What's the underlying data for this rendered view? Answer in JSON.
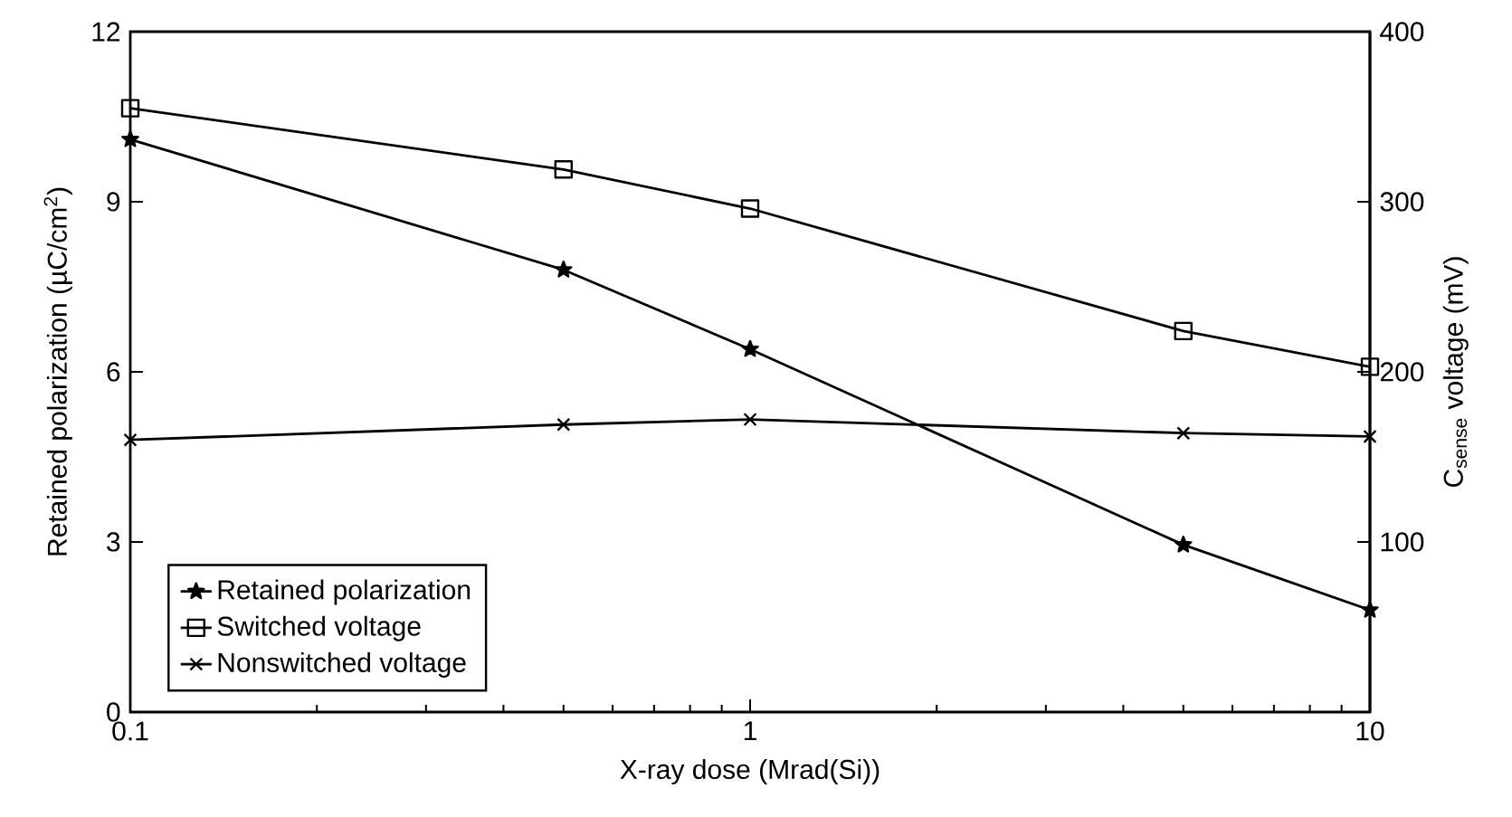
{
  "chart_data": {
    "type": "line",
    "xlabel": "X-ray dose (Mrad(Si))",
    "ylabel": "Retained polarization (µC/cm$^{2}$)",
    "y2label": "C$_{sense}$ voltage (mV)",
    "log": "x",
    "xlim": [
      0.1,
      10
    ],
    "xticks": [
      0.1,
      1,
      10
    ],
    "ylim": [
      0,
      12
    ],
    "yticks": [
      0,
      3,
      6,
      9,
      12
    ],
    "y2lim": [
      0,
      400
    ],
    "y2ticks": [
      100,
      200,
      300,
      400
    ],
    "x": [
      0.1,
      0.5,
      1,
      5,
      10
    ],
    "legend": "bottom left",
    "series": [
      {
        "name": "Retained polarization",
        "color": "#000000",
        "marker": "star",
        "values": [
          10.1,
          7.8,
          6.4,
          2.95,
          1.8
        ]
      },
      {
        "name": "Switched voltage",
        "color": "#000000",
        "marker": "square",
        "axis": "y2",
        "values": [
          355,
          319,
          296,
          224,
          203
        ]
      },
      {
        "name": "Nonswitched voltage",
        "color": "#000000",
        "marker": "cross",
        "axis": "y2",
        "values": [
          160,
          169,
          172,
          164,
          162
        ]
      }
    ]
  }
}
